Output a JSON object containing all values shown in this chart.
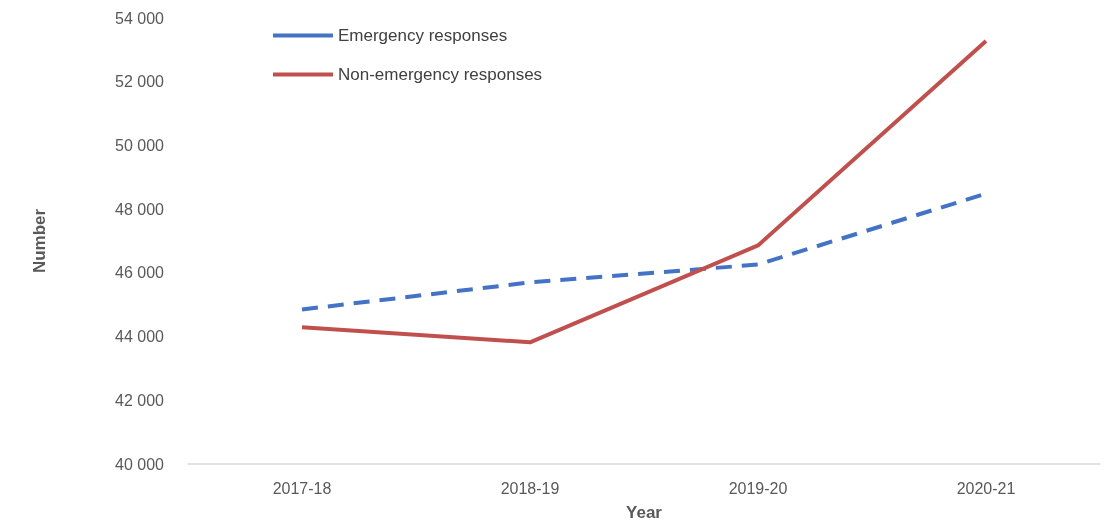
{
  "chart_data": {
    "type": "line",
    "xlabel": "Year",
    "ylabel": "Number",
    "categories": [
      "2017-18",
      "2018-19",
      "2019-20",
      "2020-21"
    ],
    "series": [
      {
        "name": "Emergency responses",
        "color": "#4472c4",
        "line_style": "dashed",
        "values": [
          44850,
          45700,
          46260,
          48490
        ]
      },
      {
        "name": "Non-emergency responses",
        "color": "#c0504d",
        "line_style": "solid",
        "values": [
          44290,
          43820,
          46860,
          53280
        ]
      }
    ],
    "ylim": [
      40000,
      54000
    ],
    "yticks": [
      {
        "value": 40000,
        "label": "40 000"
      },
      {
        "value": 42000,
        "label": "42 000"
      },
      {
        "value": 44000,
        "label": "44 000"
      },
      {
        "value": 46000,
        "label": "46 000"
      },
      {
        "value": 48000,
        "label": "48 000"
      },
      {
        "value": 50000,
        "label": "50 000"
      },
      {
        "value": 52000,
        "label": "52 000"
      },
      {
        "value": 54000,
        "label": "54 000"
      }
    ],
    "grid": false,
    "legend": "top left",
    "marker": "none"
  }
}
